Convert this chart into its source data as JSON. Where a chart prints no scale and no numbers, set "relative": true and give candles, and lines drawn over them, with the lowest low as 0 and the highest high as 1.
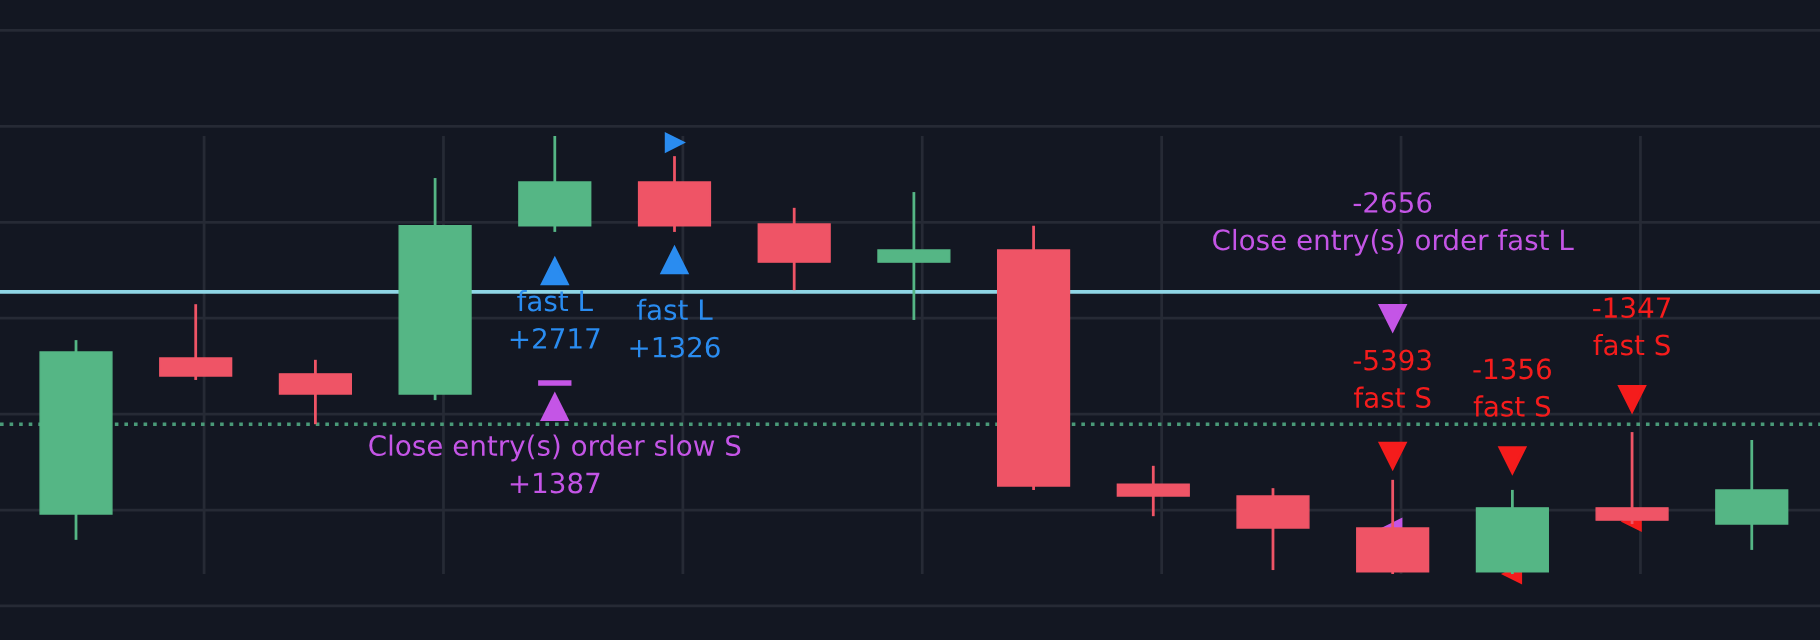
{
  "chart_data": {
    "type": "candlestick",
    "relative": true,
    "categories": [
      null,
      null,
      null,
      null,
      null,
      null,
      null,
      null,
      null,
      null,
      null,
      null,
      null,
      null,
      null
    ],
    "ohlc": [
      [
        0.137,
        0.534,
        0.078,
        0.507
      ],
      [
        0.493,
        0.616,
        0.443,
        0.452
      ],
      [
        0.457,
        0.489,
        0.342,
        0.411
      ],
      [
        0.411,
        0.904,
        0.397,
        0.795
      ],
      [
        0.795,
        1.0,
        0.781,
        0.895
      ],
      [
        0.895,
        0.954,
        0.781,
        0.795
      ],
      [
        0.799,
        0.836,
        0.648,
        0.712
      ],
      [
        0.712,
        0.872,
        0.58,
        0.74
      ],
      [
        0.74,
        0.795,
        0.192,
        0.201
      ],
      [
        0.205,
        0.247,
        0.132,
        0.178
      ],
      [
        0.178,
        0.196,
        0.009,
        0.105
      ],
      [
        0.105,
        0.215,
        0.0,
        0.005
      ],
      [
        0.005,
        0.192,
        0.0,
        0.151
      ],
      [
        0.151,
        0.324,
        0.114,
        0.123
      ],
      [
        0.114,
        0.306,
        0.055,
        0.192
      ]
    ],
    "colors": [
      "#55b685",
      "#ef5466",
      "#ef5466",
      "#55b685",
      "#55b685",
      "#ef5466",
      "#ef5466",
      "#55b685",
      "#ef5466",
      "#ef5466",
      "#ef5466",
      "#ef5466",
      "#55b685",
      "#ef5466",
      "#55b685"
    ],
    "ref_lines": [
      {
        "axis": "y",
        "value": 0.644,
        "color": "#8fd6e6",
        "line_style": "solid"
      },
      {
        "axis": "y",
        "value": 0.342,
        "color": "#4a9a78",
        "line_style": "dotted"
      }
    ],
    "annotations": [
      "fast L\n+2717",
      "fast L\n+1326",
      "Close entry(s) order slow S\n+1387",
      "-2656\nClose entry(s) order fast L",
      "-5393\nfast S",
      "-1356\nfast S",
      "-1347\nfast S"
    ],
    "grid": true
  }
}
